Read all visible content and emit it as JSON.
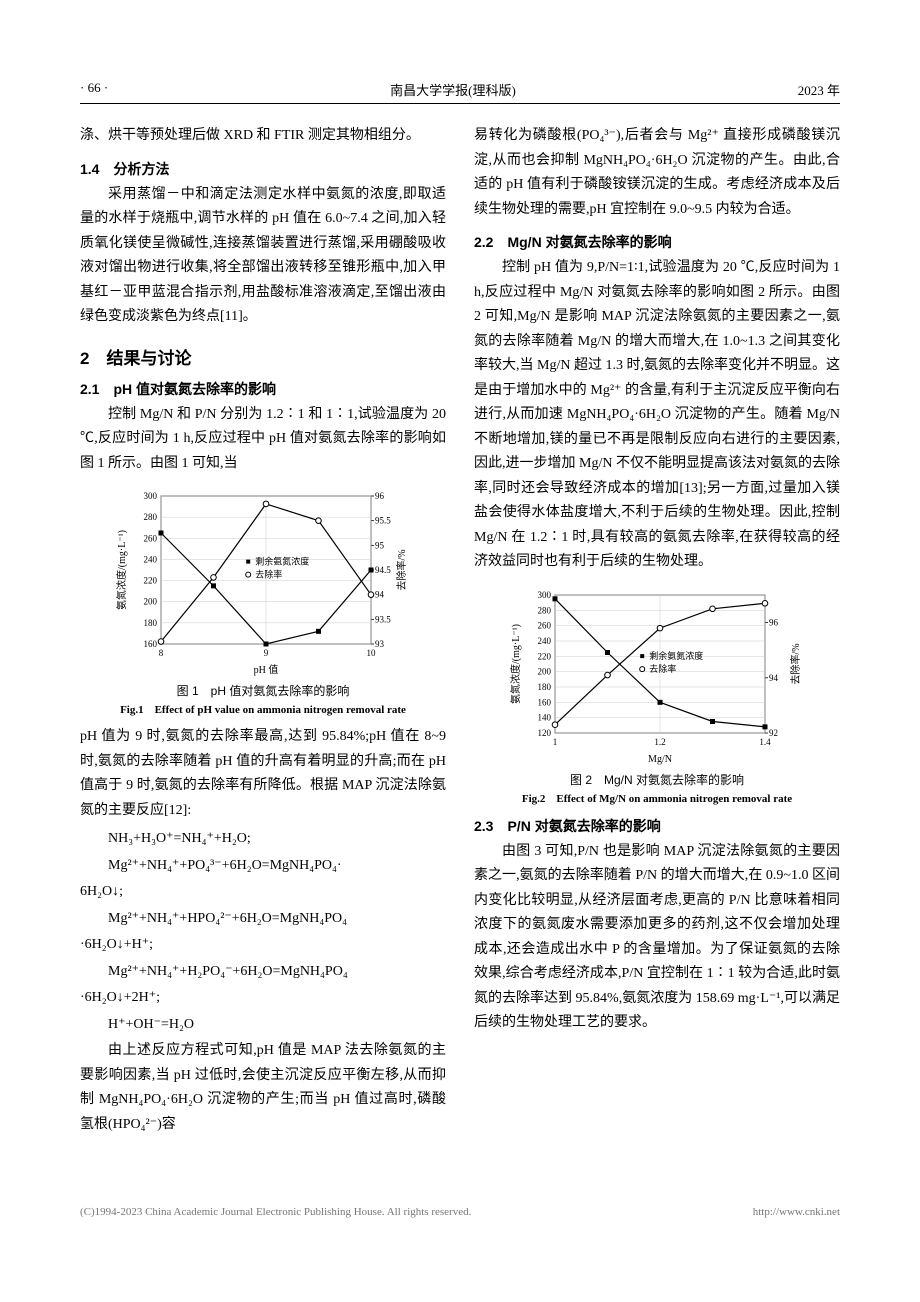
{
  "header": {
    "page_num": "· 66 ·",
    "journal": "南昌大学学报(理科版)",
    "year": "2023 年"
  },
  "left": {
    "para0": "涤、烘干等预处理后做 XRD 和 FTIR 测定其物相组分。",
    "sub14": "1.4　分析方法",
    "para1": "采用蒸馏－中和滴定法测定水样中氨氮的浓度,即取适量的水样于烧瓶中,调节水样的 pH 值在 6.0~7.4 之间,加入轻质氧化镁使呈微碱性,连接蒸馏装置进行蒸馏,采用硼酸吸收液对馏出物进行收集,将全部馏出液转移至锥形瓶中,加入甲基红－亚甲蓝混合指示剂,用盐酸标准溶液滴定,至馏出液由绿色变成淡紫色为终点[11]。",
    "sec2": "2　结果与讨论",
    "sub21": "2.1　pH 值对氨氮去除率的影响",
    "para2": "控制 Mg/N 和 P/N 分别为 1.2∶1 和 1∶1,试验温度为 20 ℃,反应时间为 1 h,反应过程中 pH 值对氨氮去除率的影响如图 1 所示。由图 1 可知,当",
    "fig1_cn": "图 1　pH 值对氨氮去除率的影响",
    "fig1_en": "Fig.1　Effect of pH value on ammonia nitrogen removal rate",
    "para3": "pH 值为 9 时,氨氮的去除率最高,达到 95.84%;pH 值在 8~9 时,氨氮的去除率随着 pH 值的升高有着明显的升高;而在 pH 值高于 9 时,氨氮的去除率有所降低。根据 MAP 沉淀法除氨氮的主要反应[12]:",
    "eq1": "NH₃+H₃O⁺=NH₄⁺+H₂O;",
    "eq2": "Mg²⁺+NH₄⁺+PO₄³⁻+6H₂O=MgNH₄PO₄·",
    "eq2b": "6H₂O↓;",
    "eq3": "Mg²⁺+NH₄⁺+HPO₄²⁻+6H₂O=MgNH₄PO₄",
    "eq3b": "·6H₂O↓+H⁺;",
    "eq4": "Mg²⁺+NH₄⁺+H₂PO₄⁻+6H₂O=MgNH₄PO₄",
    "eq4b": "·6H₂O↓+2H⁺;",
    "eq5": "H⁺+OH⁻=H₂O",
    "para4": "由上述反应方程式可知,pH 值是 MAP 法去除氨氮的主要影响因素,当 pH 过低时,会使主沉淀反应平衡左移,从而抑制 MgNH₄PO₄·6H₂O 沉淀物的产生;而当 pH 值过高时,磷酸氢根(HPO₄²⁻)容"
  },
  "right": {
    "para0": "易转化为磷酸根(PO₄³⁻),后者会与 Mg²⁺ 直接形成磷酸镁沉淀,从而也会抑制 MgNH₄PO₄·6H₂O 沉淀物的产生。由此,合适的 pH 值有利于磷酸铵镁沉淀的生成。考虑经济成本及后续生物处理的需要,pH 宜控制在 9.0~9.5 内较为合适。",
    "sub22": "2.2　Mg/N 对氨氮去除率的影响",
    "para1": "控制 pH 值为 9,P/N=1∶1,试验温度为 20 ℃,反应时间为 1 h,反应过程中 Mg/N 对氨氮去除率的影响如图 2 所示。由图 2 可知,Mg/N 是影响 MAP 沉淀法除氨氮的主要因素之一,氨氮的去除率随着 Mg/N 的增大而增大,在 1.0~1.3 之间其变化率较大,当 Mg/N 超过 1.3 时,氨氮的去除率变化并不明显。这是由于增加水中的 Mg²⁺ 的含量,有利于主沉淀反应平衡向右进行,从而加速 MgNH₄PO₄·6H₂O 沉淀物的产生。随着 Mg/N 不断地增加,镁的量已不再是限制反应向右进行的主要因素,因此,进一步增加 Mg/N 不仅不能明显提高该法对氨氮的去除率,同时还会导致经济成本的增加[13];另一方面,过量加入镁盐会使得水体盐度增大,不利于后续的生物处理。因此,控制 Mg/N 在 1.2∶1 时,具有较高的氨氮去除率,在获得较高的经济效益同时也有利于后续的生物处理。",
    "fig2_cn": "图 2　Mg/N 对氨氮去除率的影响",
    "fig2_en": "Fig.2　Effect of Mg/N on ammonia nitrogen removal rate",
    "sub23": "2.3　P/N 对氨氮去除率的影响",
    "para2": "由图 3 可知,P/N 也是影响 MAP 沉淀法除氨氮的主要因素之一,氨氮的去除率随着 P/N 的增大而增大,在 0.9~1.0 区间内变化比较明显,从经济层面考虑,更高的 P/N 比意味着相同浓度下的氨氮废水需要添加更多的药剂,这不仅会增加处理成本,还会造成出水中 P 的含量增加。为了保证氨氮的去除效果,综合考虑经济成本,P/N 宜控制在 1∶1 较为合适,此时氨氮的去除率达到 95.84%,氨氮浓度为 158.69 mg·L⁻¹,可以满足后续的生物处理工艺的要求。"
  },
  "chart1": {
    "type": "dual_axis_line",
    "x_label": "pH 值",
    "y1_label": "氨氮浓度/(mg·L⁻¹)",
    "y2_label": "去除率/%",
    "x_ticks": [
      8,
      9,
      10
    ],
    "y1_ticks": [
      160,
      180,
      200,
      220,
      240,
      260,
      280,
      300
    ],
    "y1_lim": [
      160,
      300
    ],
    "y2_ticks": [
      93.0,
      93.5,
      94.0,
      94.5,
      95.0,
      95.5,
      96.0
    ],
    "y2_lim": [
      93.0,
      96.0
    ],
    "series1": {
      "name": "剩余氨氮浓度",
      "color": "#000000",
      "marker": "square",
      "x": [
        8,
        8.5,
        9,
        9.5,
        10
      ],
      "y": [
        265,
        215,
        160,
        172,
        230
      ]
    },
    "series2": {
      "name": "去除率",
      "color": "#000000",
      "marker": "circle_open",
      "x": [
        8,
        8.5,
        9,
        9.5,
        10
      ],
      "y": [
        93.05,
        94.35,
        95.84,
        95.5,
        94.0
      ]
    },
    "legend_pos": "inside",
    "grid_color": "#cccccc",
    "background_color": "#ffffff"
  },
  "chart2": {
    "type": "dual_axis_line",
    "x_label": "Mg/N",
    "y1_label": "氨氮浓度/(mg·L⁻¹)",
    "y2_label": "去除率/%",
    "x_ticks": [
      1.0,
      1.2,
      1.4
    ],
    "y1_ticks": [
      120,
      140,
      160,
      180,
      200,
      220,
      240,
      260,
      280,
      300
    ],
    "y1_lim": [
      120,
      300
    ],
    "y2_ticks": [
      92,
      94,
      96
    ],
    "y2_lim": [
      92,
      97
    ],
    "series1": {
      "name": "剩余氨氮浓度",
      "color": "#000000",
      "marker": "square",
      "x": [
        1.0,
        1.1,
        1.2,
        1.3,
        1.4
      ],
      "y": [
        295,
        225,
        160,
        135,
        128
      ]
    },
    "series2": {
      "name": "去除率",
      "color": "#000000",
      "marker": "circle_open",
      "x": [
        1.0,
        1.1,
        1.2,
        1.3,
        1.4
      ],
      "y": [
        92.3,
        94.1,
        95.8,
        96.5,
        96.7
      ]
    },
    "legend_pos": "inside",
    "grid_color": "#cccccc",
    "background_color": "#ffffff"
  },
  "footer": {
    "left": "(C)1994-2023 China Academic Journal Electronic Publishing House. All rights reserved.",
    "right": "http://www.cnki.net"
  }
}
